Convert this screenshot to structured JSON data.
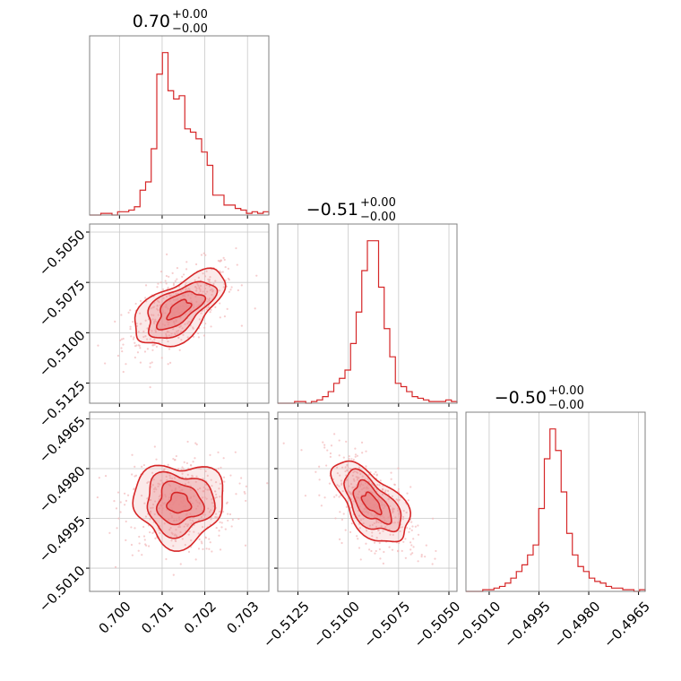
{
  "chart_data": {
    "type": "corner",
    "color": "#d62728",
    "fill_color": "#e8888a",
    "point_color": "#f2b8b9",
    "grid": true,
    "params": [
      {
        "title_value": "0.70",
        "err_plus": "+0.00",
        "err_minus": "−0.00",
        "range": [
          0.6993,
          0.7035
        ],
        "ticks": [
          0.7,
          0.701,
          0.702,
          0.703
        ],
        "tick_labels": [
          "0.700",
          "0.701",
          "0.702",
          "0.703"
        ],
        "hist": [
          0,
          0,
          0.01,
          0.01,
          0,
          0.02,
          0.02,
          0.03,
          0.05,
          0.15,
          0.2,
          0.4,
          0.85,
          0.98,
          0.75,
          0.7,
          0.72,
          0.52,
          0.5,
          0.46,
          0.38,
          0.3,
          0.12,
          0.12,
          0.06,
          0.06,
          0.04,
          0.03,
          0.01,
          0.02,
          0.01,
          0.02
        ]
      },
      {
        "title_value": "−0.51",
        "err_plus": "+0.00",
        "err_minus": "−0.00",
        "range": [
          -0.5135,
          -0.5046
        ],
        "ticks": [
          -0.5125,
          -0.51,
          -0.5075,
          -0.505
        ],
        "tick_labels": [
          "−0.5125",
          "−0.5100",
          "−0.5075",
          "−0.5050"
        ],
        "hist": [
          0,
          0,
          0,
          0.01,
          0.01,
          0,
          0.01,
          0.02,
          0.04,
          0.07,
          0.12,
          0.15,
          0.2,
          0.36,
          0.55,
          0.8,
          0.98,
          0.98,
          0.7,
          0.45,
          0.28,
          0.12,
          0.1,
          0.07,
          0.04,
          0.03,
          0.02,
          0.01,
          0.01,
          0.01,
          0.02,
          0.01
        ]
      },
      {
        "title_value": "−0.50",
        "err_plus": "+0.00",
        "err_minus": "−0.00",
        "range": [
          -0.5017,
          -0.4963
        ],
        "ticks": [
          -0.501,
          -0.4995,
          -0.498,
          -0.4965
        ],
        "tick_labels": [
          "−0.5010",
          "−0.4995",
          "−0.4980",
          "−0.4965"
        ],
        "hist": [
          0,
          0,
          0,
          0.01,
          0.01,
          0.02,
          0.03,
          0.05,
          0.08,
          0.12,
          0.16,
          0.22,
          0.28,
          0.5,
          0.8,
          0.98,
          0.85,
          0.6,
          0.35,
          0.22,
          0.15,
          0.12,
          0.08,
          0.06,
          0.05,
          0.03,
          0.02,
          0.02,
          0.01,
          0.01,
          0,
          0.01
        ]
      }
    ],
    "correlations": {
      "1_0": 0.6,
      "2_0": 0.0,
      "2_1": -0.6
    }
  }
}
